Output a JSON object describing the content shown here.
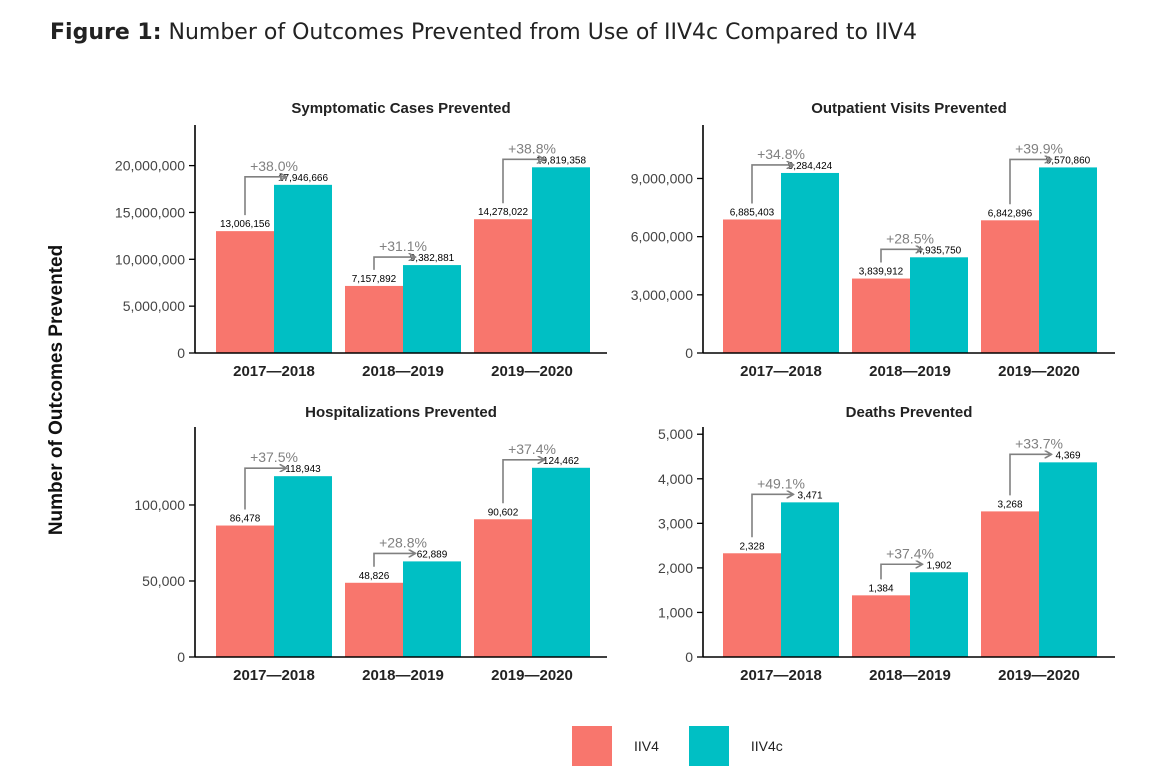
{
  "figure": {
    "label": "Figure 1:",
    "title": " Number of Outcomes Prevented from Use of IIV4c Compared to IIV4"
  },
  "ylabel": "Number of Outcomes Prevented",
  "legend": [
    {
      "name": "IIV4",
      "color": "#F8766D"
    },
    {
      "name": "IIV4c",
      "color": "#00BFC4"
    }
  ],
  "colors": {
    "iiv4": "#F8766D",
    "iiv4c": "#00BFC4",
    "arrow": "#808080",
    "axis": "#000000"
  },
  "chart_data": [
    {
      "type": "bar",
      "title": "Symptomatic Cases Prevented",
      "categories": [
        "2017—2018",
        "2018—2019",
        "2019—2020"
      ],
      "series": [
        {
          "name": "IIV4",
          "values": [
            13006156,
            7157892,
            14278022
          ]
        },
        {
          "name": "IIV4c",
          "values": [
            17946666,
            9382881,
            19819358
          ]
        }
      ],
      "value_labels": [
        [
          "13,006,156",
          "7,157,892",
          "14,278,022"
        ],
        [
          "17,946,666",
          "9,382,881",
          "19,819,358"
        ]
      ],
      "pct_labels": [
        "+38.0%",
        "+31.1%",
        "+38.8%"
      ],
      "yticks": [
        0,
        5000000,
        10000000,
        15000000,
        20000000
      ],
      "ytick_labels": [
        "0",
        "5,000,000",
        "10,000,000",
        "15,000,000",
        "20,000,000"
      ],
      "ylim": [
        0,
        23800000
      ]
    },
    {
      "type": "bar",
      "title": "Outpatient Visits Prevented",
      "categories": [
        "2017—2018",
        "2018—2019",
        "2019—2020"
      ],
      "series": [
        {
          "name": "IIV4",
          "values": [
            6885403,
            3839912,
            6842896
          ]
        },
        {
          "name": "IIV4c",
          "values": [
            9284424,
            4935750,
            9570860
          ]
        }
      ],
      "value_labels": [
        [
          "6,885,403",
          "3,839,912",
          "6,842,896"
        ],
        [
          "9,284,424",
          "4,935,750",
          "9,570,860"
        ]
      ],
      "pct_labels": [
        "+34.8%",
        "+28.5%",
        "+39.9%"
      ],
      "yticks": [
        0,
        3000000,
        6000000,
        9000000
      ],
      "ytick_labels": [
        "0",
        "3,000,000",
        "6,000,000",
        "9,000,000"
      ],
      "ylim": [
        0,
        11500000
      ]
    },
    {
      "type": "bar",
      "title": "Hospitalizations Prevented",
      "categories": [
        "2017—2018",
        "2018—2019",
        "2019—2020"
      ],
      "series": [
        {
          "name": "IIV4",
          "values": [
            86478,
            48826,
            90602
          ]
        },
        {
          "name": "IIV4c",
          "values": [
            118943,
            62889,
            124462
          ]
        }
      ],
      "value_labels": [
        [
          "86,478",
          "48,826",
          "90,602"
        ],
        [
          "118,943",
          "62,889",
          "124,462"
        ]
      ],
      "pct_labels": [
        "+37.5%",
        "+28.8%",
        "+37.4%"
      ],
      "yticks": [
        0,
        50000,
        100000
      ],
      "ytick_labels": [
        "0",
        "50,000",
        "100,000"
      ],
      "ylim": [
        0,
        148000
      ]
    },
    {
      "type": "bar",
      "title": "Deaths Prevented",
      "categories": [
        "2017—2018",
        "2018—2019",
        "2019—2020"
      ],
      "series": [
        {
          "name": "IIV4",
          "values": [
            2328,
            1384,
            3268
          ]
        },
        {
          "name": "IIV4c",
          "values": [
            3471,
            1902,
            4369
          ]
        }
      ],
      "value_labels": [
        [
          "2,328",
          "1,384",
          "3,268"
        ],
        [
          "3,471",
          "1,902",
          "4,369"
        ]
      ],
      "pct_labels": [
        "+49.1%",
        "+37.4%",
        "+33.7%"
      ],
      "yticks": [
        0,
        1000,
        2000,
        3000,
        4000,
        5000
      ],
      "ytick_labels": [
        "0",
        "1,000",
        "2,000",
        "3,000",
        "4,000",
        "5,000"
      ],
      "ylim": [
        0,
        5050
      ]
    }
  ]
}
